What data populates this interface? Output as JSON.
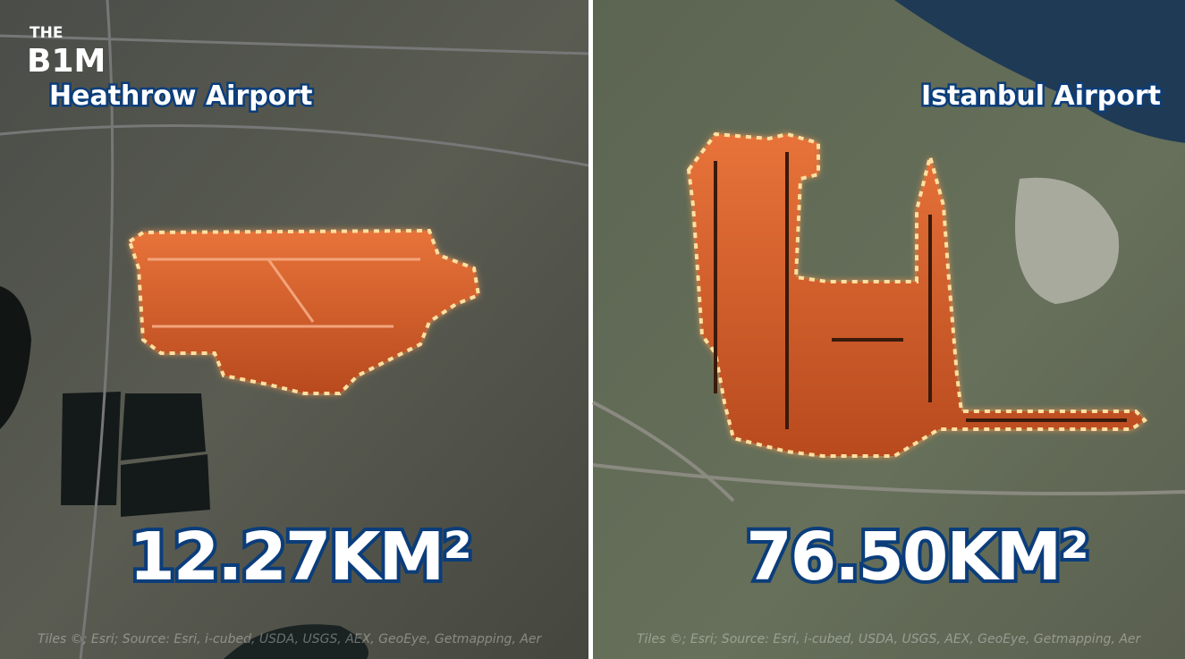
{
  "logo": {
    "top": "THE",
    "bottom": "B1M"
  },
  "panels": [
    {
      "name": "Heathrow Airport",
      "area": "12.27KM²",
      "attribution": "Tiles ©; Esri; Source: Esri, i-cubed, USDA, USGS, AEX, GeoEye, Getmapping, Aer"
    },
    {
      "name": "Istanbul Airport",
      "area": "76.50KM²",
      "attribution": "Tiles ©; Esri; Source: Esri, i-cubed, USDA, USGS, AEX, GeoEye, Getmapping, Aer"
    }
  ]
}
